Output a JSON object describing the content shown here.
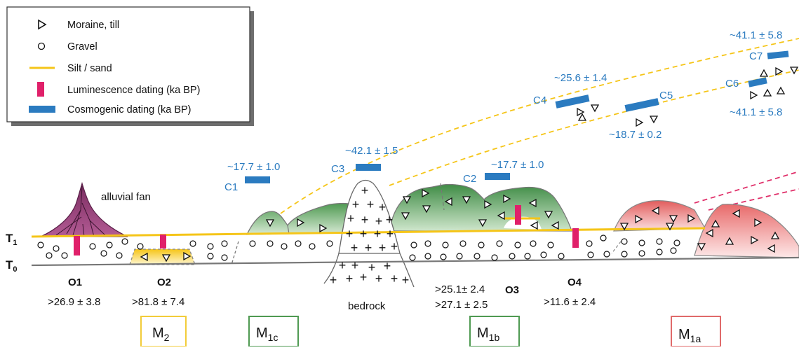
{
  "legend": {
    "items": [
      {
        "label": "Moraine, till",
        "symbol": "triangle"
      },
      {
        "label": "Gravel",
        "symbol": "circle"
      },
      {
        "label": "Silt / sand",
        "symbol": "yellow-line"
      },
      {
        "label": "Luminescence dating (ka BP)",
        "symbol": "magenta-bar"
      },
      {
        "label": "Cosmogenic dating (ka BP)",
        "symbol": "blue-bar"
      }
    ]
  },
  "terraces": {
    "t1": "T",
    "t1_sub": "1",
    "t0": "T",
    "t0_sub": "0"
  },
  "features": {
    "alluvial_fan": "alluvial fan",
    "bedrock": "bedrock"
  },
  "cosmogenic": {
    "c1": {
      "id": "C1",
      "age": "~17.7 ± 1.0"
    },
    "c2": {
      "id": "C2",
      "age": "~17.7 ± 1.0"
    },
    "c3": {
      "id": "C3",
      "age": "~42.1 ± 1.5"
    },
    "c4": {
      "id": "C4",
      "age": "~25.6 ± 1.4"
    },
    "c5": {
      "id": "C5",
      "age": "~18.7 ± 0.2"
    },
    "c6": {
      "id": "C6",
      "age": "~41.1 ± 5.8"
    },
    "c7": {
      "id": "C7",
      "age": "~41.1 ± 5.8"
    }
  },
  "luminescence": {
    "o1": {
      "id": "O1",
      "age": ">26.9 ± 3.8"
    },
    "o2": {
      "id": "O2",
      "age": ">81.8 ± 7.4"
    },
    "o3": {
      "id": "O3",
      "age_a": ">25.1± 2.4",
      "age_b": ">27.1 ± 2.5"
    },
    "o4": {
      "id": "O4",
      "age": ">11.6 ± 2.4"
    }
  },
  "moraine_units": {
    "m2": {
      "main": "M",
      "sub": "2",
      "color": "#f2cc3a"
    },
    "m1c": {
      "main": "M",
      "sub": "1c",
      "color": "#4f9a52"
    },
    "m1b": {
      "main": "M",
      "sub": "1b",
      "color": "#4f9a52"
    },
    "m1a": {
      "main": "M",
      "sub": "1a",
      "color": "#e06a6a"
    }
  },
  "colors": {
    "cosmogenic_bar": "#2b7bc0",
    "luminescence_bar": "#e0206a",
    "silt_sand": "#f5c518",
    "moraine_green": "#5d9e5e",
    "moraine_red": "#e87b7b",
    "fan_purple": "#8a3a6e"
  }
}
